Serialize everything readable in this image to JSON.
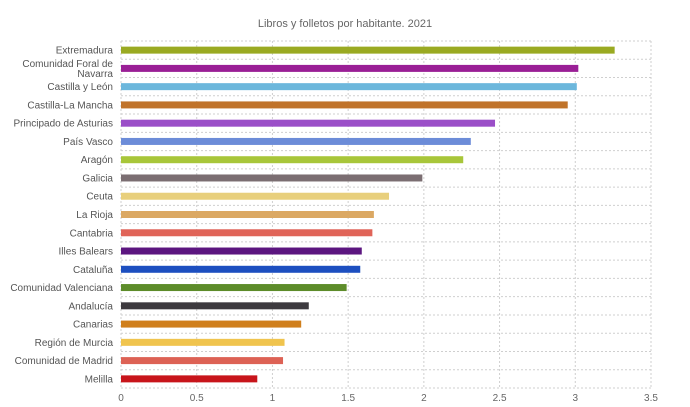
{
  "chart_data": {
    "type": "bar",
    "orientation": "horizontal",
    "title": "Libros y folletos por habitante. 2021",
    "xlabel": "",
    "ylabel": "",
    "xlim": [
      0,
      3.5
    ],
    "x_ticks": [
      "0",
      "0.5",
      "1",
      "1.5",
      "2",
      "2.5",
      "3",
      "3.5"
    ],
    "grid": true,
    "legend": "none",
    "categories": [
      {
        "label": [
          "Extremadura"
        ],
        "value": 3.26,
        "color": "#9aaa22"
      },
      {
        "label": [
          "Comunidad Foral de",
          "Navarra"
        ],
        "value": 3.02,
        "color": "#9a1f96"
      },
      {
        "label": [
          "Castilla y León"
        ],
        "value": 3.01,
        "color": "#6cb7dc"
      },
      {
        "label": [
          "Castilla-La Mancha"
        ],
        "value": 2.95,
        "color": "#c0732a"
      },
      {
        "label": [
          "Principado de Asturias"
        ],
        "value": 2.47,
        "color": "#9b4fc8"
      },
      {
        "label": [
          "País Vasco"
        ],
        "value": 2.31,
        "color": "#6c8cd8"
      },
      {
        "label": [
          "Aragón"
        ],
        "value": 2.26,
        "color": "#a8c63a"
      },
      {
        "label": [
          "Galicia"
        ],
        "value": 1.99,
        "color": "#7b6e72"
      },
      {
        "label": [
          "Ceuta"
        ],
        "value": 1.77,
        "color": "#e8cf7c"
      },
      {
        "label": [
          "La Rioja"
        ],
        "value": 1.67,
        "color": "#dba863"
      },
      {
        "label": [
          "Cantabria"
        ],
        "value": 1.66,
        "color": "#e06458"
      },
      {
        "label": [
          "Illes Balears"
        ],
        "value": 1.59,
        "color": "#5c1680"
      },
      {
        "label": [
          "Cataluña"
        ],
        "value": 1.58,
        "color": "#1d4fc0"
      },
      {
        "label": [
          "Comunidad Valenciana"
        ],
        "value": 1.49,
        "color": "#5d8c2a"
      },
      {
        "label": [
          "Andalucía"
        ],
        "value": 1.24,
        "color": "#3d3a3f"
      },
      {
        "label": [
          "Canarias"
        ],
        "value": 1.19,
        "color": "#d07f1c"
      },
      {
        "label": [
          "Región de Murcia"
        ],
        "value": 1.08,
        "color": "#f0c44e"
      },
      {
        "label": [
          "Comunidad de Madrid"
        ],
        "value": 1.07,
        "color": "#dd6255"
      },
      {
        "label": [
          "Melilla"
        ],
        "value": 0.9,
        "color": "#c8151b"
      }
    ]
  }
}
